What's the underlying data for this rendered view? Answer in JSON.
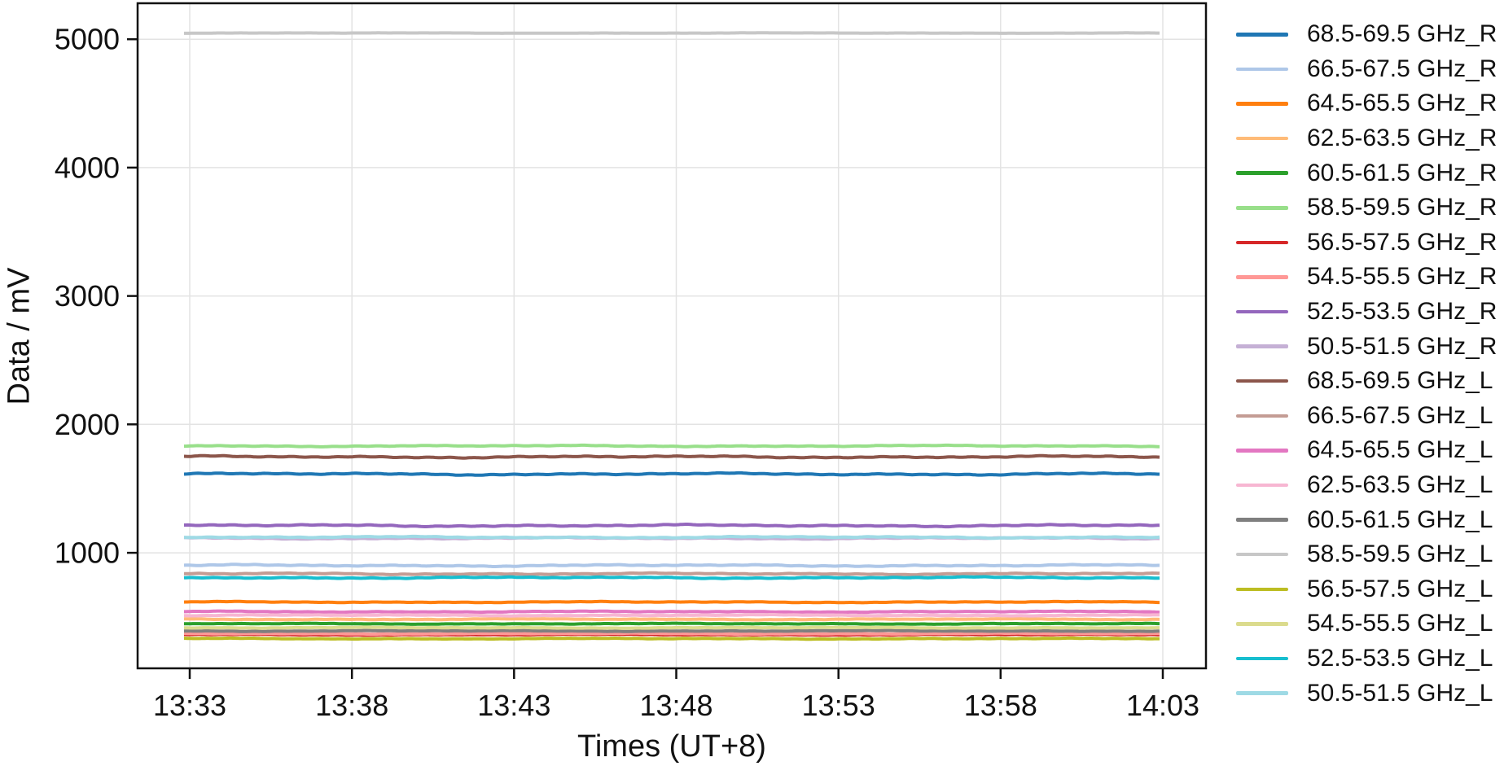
{
  "chart_data": {
    "type": "line",
    "title": "",
    "xlabel": "Times (UT+8)",
    "ylabel": "Data / mV",
    "x_tick_labels": [
      "13:33",
      "13:38",
      "13:43",
      "13:48",
      "13:53",
      "13:58",
      "14:03"
    ],
    "y_ticks": [
      1000,
      2000,
      3000,
      4000,
      5000
    ],
    "y_tick_labels": [
      "1000",
      "2000",
      "3000",
      "4000",
      "5000"
    ],
    "ylim": [
      100,
      5280
    ],
    "grid": true,
    "legend_position": "right-outside",
    "series": [
      {
        "name": "68.5-69.5 GHz_R",
        "color": "#1f77b4",
        "level_mV": 1613,
        "wiggle_mV": 9
      },
      {
        "name": "66.5-67.5 GHz_R",
        "color": "#aec7e8",
        "level_mV": 901,
        "wiggle_mV": 8
      },
      {
        "name": "64.5-65.5 GHz_R",
        "color": "#ff7f0e",
        "level_mV": 616,
        "wiggle_mV": 5
      },
      {
        "name": "62.5-63.5 GHz_R",
        "color": "#ffbb78",
        "level_mV": 482,
        "wiggle_mV": 5
      },
      {
        "name": "60.5-61.5 GHz_R",
        "color": "#2ca02c",
        "level_mV": 447,
        "wiggle_mV": 4
      },
      {
        "name": "58.5-59.5 GHz_R",
        "color": "#98df8a",
        "level_mV": 1832,
        "wiggle_mV": 6
      },
      {
        "name": "56.5-57.5 GHz_R",
        "color": "#d62728",
        "level_mV": 362,
        "wiggle_mV": 4
      },
      {
        "name": "54.5-55.5 GHz_R",
        "color": "#ff9896",
        "level_mV": 370,
        "wiggle_mV": 4
      },
      {
        "name": "52.5-53.5 GHz_R",
        "color": "#9467bd",
        "level_mV": 1212,
        "wiggle_mV": 9
      },
      {
        "name": "50.5-51.5 GHz_R",
        "color": "#c5b0d5",
        "level_mV": 1113,
        "wiggle_mV": 7
      },
      {
        "name": "68.5-69.5 GHz_L",
        "color": "#8c564b",
        "level_mV": 1747,
        "wiggle_mV": 9
      },
      {
        "name": "66.5-67.5 GHz_L",
        "color": "#c49c94",
        "level_mV": 836,
        "wiggle_mV": 7
      },
      {
        "name": "64.5-65.5 GHz_L",
        "color": "#e377c2",
        "level_mV": 541,
        "wiggle_mV": 5
      },
      {
        "name": "62.5-63.5 GHz_L",
        "color": "#f7b6d2",
        "level_mV": 513,
        "wiggle_mV": 5
      },
      {
        "name": "60.5-61.5 GHz_L",
        "color": "#7f7f7f",
        "level_mV": 391,
        "wiggle_mV": 4
      },
      {
        "name": "58.5-59.5 GHz_L",
        "color": "#c7c7c7",
        "level_mV": 5048,
        "wiggle_mV": 2
      },
      {
        "name": "56.5-57.5 GHz_L",
        "color": "#bcbd22",
        "level_mV": 331,
        "wiggle_mV": 4
      },
      {
        "name": "54.5-55.5 GHz_L",
        "color": "#dbdb8d",
        "level_mV": 416,
        "wiggle_mV": 4
      },
      {
        "name": "52.5-53.5 GHz_L",
        "color": "#17becf",
        "level_mV": 806,
        "wiggle_mV": 7
      },
      {
        "name": "50.5-51.5 GHz_L",
        "color": "#9edae5",
        "level_mV": 1121,
        "wiggle_mV": 7
      }
    ]
  }
}
